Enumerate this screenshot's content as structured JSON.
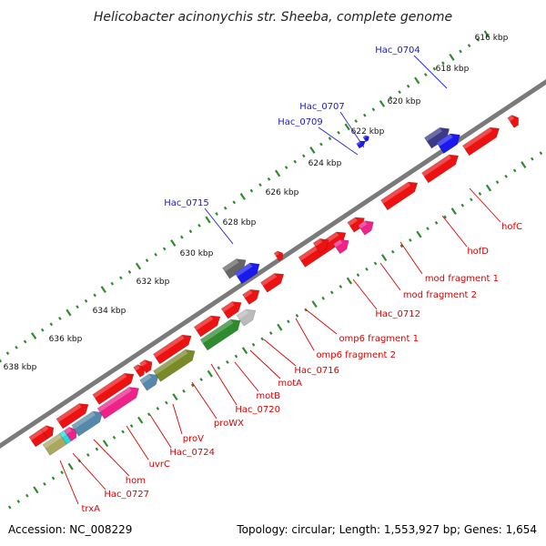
{
  "title": "Helicobacter acinonychis str. Sheeba, complete genome",
  "accession": "Accession: NC_008229",
  "summary": "Topology: circular; Length: 1,553,927 bp; Genes: 1,654",
  "colors": {
    "backbone": "#7a7a7a",
    "tick": "#2e8b2e",
    "label_blue": "#1a1acc",
    "label_red": "#dd0000",
    "line_blue": "#2222dd",
    "line_red": "#dd0000"
  },
  "scale_labels": [
    "616 kbp",
    "618 kbp",
    "620 kbp",
    "622 kbp",
    "624 kbp",
    "626 kbp",
    "628 kbp",
    "630 kbp",
    "632 kbp",
    "634 kbp",
    "636 kbp",
    "638 kbp"
  ],
  "top_labels": [
    "Hac_0704",
    "Hac_0707",
    "Hac_0709",
    "Hac_0715"
  ],
  "bottom_labels": [
    "hofC",
    "hofD",
    "mod fragment 1",
    "mod fragment 2",
    "Hac_0712",
    "omp6 fragment 1",
    "omp6 fragment 2",
    "Hac_0716",
    "motA",
    "motB",
    "Hac_0720",
    "proWX",
    "proV",
    "Hac_0724",
    "uvrC",
    "hom",
    "Hac_0727",
    "trxA"
  ]
}
